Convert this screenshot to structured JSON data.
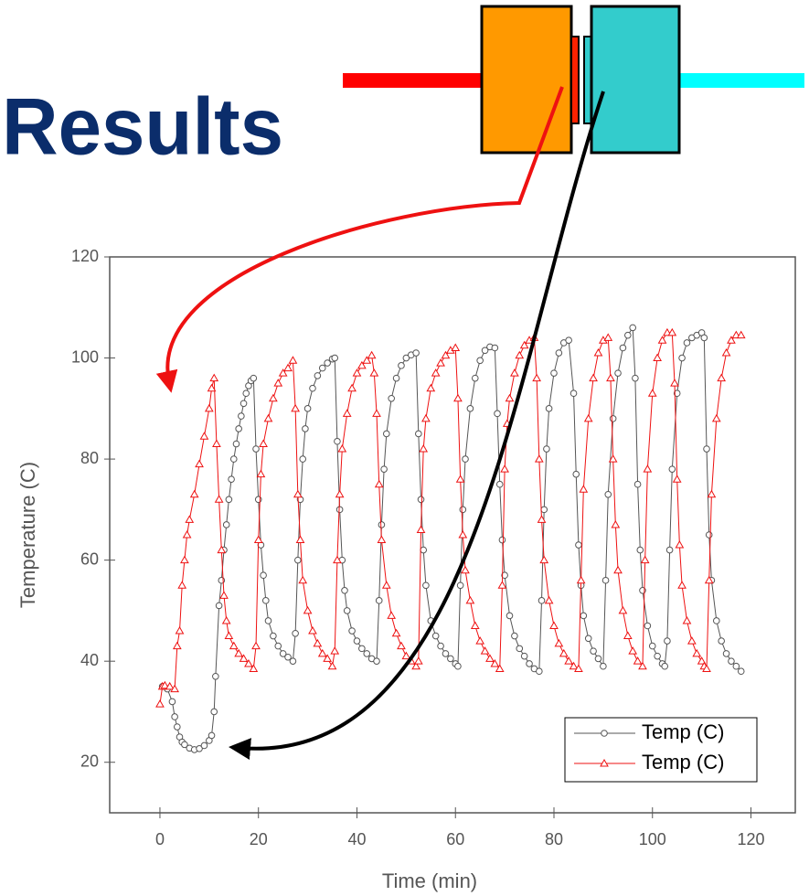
{
  "title": "Results",
  "chart_data": {
    "type": "line",
    "x_label": "Time (min)",
    "y_label": "Temperature (C)",
    "xlim": [
      -10.2,
      129
    ],
    "ylim": [
      10,
      120
    ],
    "xticks": [
      0,
      20,
      40,
      60,
      80,
      100,
      120
    ],
    "yticks": [
      20,
      40,
      60,
      80,
      100,
      120
    ],
    "legend": "lower right",
    "series": [
      {
        "name": "Temp (C)",
        "color": "#555555",
        "marker": "circle",
        "x": [
          0.5,
          1.5,
          2.5,
          3,
          3.5,
          4,
          4.5,
          5,
          6,
          7,
          8,
          9,
          10,
          10.5,
          11,
          11.3,
          12,
          12.5,
          13,
          13.5,
          14,
          14.5,
          15,
          15.5,
          16,
          16.5,
          17,
          17.5,
          18,
          18.5,
          19,
          19.5,
          20,
          20.5,
          21,
          21.5,
          22,
          23,
          24,
          25,
          26,
          27,
          27.5,
          28,
          28.5,
          29,
          29.5,
          30,
          31,
          32,
          33,
          34,
          35,
          35.5,
          36,
          36.5,
          37,
          37.5,
          38,
          39,
          40,
          41,
          42,
          43,
          44,
          44.5,
          45,
          45.5,
          46,
          47,
          48,
          49,
          50,
          51,
          52,
          52.5,
          53,
          53.5,
          54,
          55,
          56,
          57,
          58,
          59,
          60,
          60.5,
          61,
          61.5,
          62,
          63,
          64,
          65,
          66,
          67,
          68,
          68.5,
          69,
          69.5,
          70,
          71,
          72,
          73,
          74,
          75,
          76,
          77,
          77.5,
          78,
          78.5,
          79,
          80,
          81,
          82,
          83,
          84,
          84.5,
          85,
          85.5,
          86,
          87,
          88,
          89,
          90,
          90.5,
          91,
          92,
          93,
          94,
          95,
          96,
          96.5,
          97,
          97.5,
          98,
          99,
          100,
          101,
          102,
          102.5,
          103,
          103.5,
          104,
          105,
          106,
          107,
          108,
          109,
          110,
          110.5,
          111,
          111.5,
          112,
          113,
          114,
          115,
          116,
          117,
          118
        ],
        "values": [
          35,
          34.5,
          32,
          29,
          27,
          25,
          24,
          23.5,
          22.8,
          22.5,
          22.7,
          23.3,
          24.3,
          25.3,
          30,
          37,
          51,
          56,
          62,
          67,
          72,
          76,
          80,
          83,
          86,
          88.5,
          91,
          93,
          94.5,
          95.5,
          96,
          82,
          72,
          63,
          57,
          52,
          48,
          45,
          43,
          41.5,
          40.8,
          40,
          45.5,
          60,
          72,
          80,
          86,
          90,
          94,
          96.5,
          98,
          99,
          99.8,
          100,
          83.5,
          70,
          60,
          54,
          50,
          46,
          44,
          42.5,
          41.5,
          40.5,
          40,
          52,
          67,
          78,
          85,
          92,
          96,
          98.5,
          100,
          100.6,
          101,
          85,
          72,
          62,
          55,
          48,
          45,
          43,
          41.5,
          40.5,
          39.5,
          39,
          55,
          70,
          80,
          90,
          96,
          99.5,
          101.5,
          102.2,
          102,
          89,
          75,
          64,
          57,
          49,
          45,
          42.5,
          41,
          39.5,
          38.5,
          38,
          52,
          70,
          82,
          90,
          97,
          101,
          103,
          103.5,
          93,
          77,
          63,
          55,
          49,
          44.5,
          42,
          40.5,
          39,
          56,
          73,
          88,
          97,
          102,
          104.5,
          106,
          96,
          75,
          62,
          54,
          47,
          43,
          41,
          39.5,
          39,
          44,
          62,
          78,
          93,
          100,
          103,
          104,
          104.5,
          105,
          104,
          82,
          65,
          56,
          48,
          44,
          41.5,
          40,
          39,
          38
        ]
      },
      {
        "name": "Temp (C)",
        "color": "#ee1111",
        "marker": "triangle",
        "x": [
          0,
          0.5,
          1,
          2,
          3,
          3.5,
          4,
          4.5,
          5,
          5.5,
          6,
          7,
          8,
          9,
          10,
          10.5,
          11,
          11.5,
          12,
          12.5,
          13,
          13.5,
          14,
          15,
          16,
          17,
          18,
          19,
          19.5,
          20,
          20.5,
          21,
          22,
          23,
          24,
          25,
          26,
          27,
          27.5,
          28,
          28.5,
          29,
          30,
          31,
          32,
          33,
          34,
          35,
          35.5,
          36,
          36.5,
          37,
          38,
          39,
          40,
          41,
          42,
          43,
          43.5,
          44,
          44.5,
          45,
          46,
          47,
          48,
          49,
          50,
          51,
          52,
          52.5,
          53,
          53.5,
          54,
          55,
          56,
          57,
          58,
          59,
          60,
          60.5,
          61,
          61.5,
          62,
          63,
          64,
          65,
          66,
          67,
          68,
          69,
          69.5,
          70,
          70.5,
          71,
          72,
          73,
          74,
          75,
          76,
          76.5,
          77,
          77.5,
          78,
          79,
          80,
          81,
          82,
          83,
          84,
          85,
          85.5,
          86,
          87,
          88,
          89,
          90,
          91,
          91.5,
          92,
          92.5,
          93,
          94,
          95,
          96,
          97,
          98,
          98.5,
          99,
          100,
          101,
          102,
          103,
          104,
          104.5,
          105,
          105.5,
          106,
          107,
          108,
          109,
          110,
          110.5,
          111,
          111.5,
          112,
          113,
          114,
          115,
          116,
          117,
          118
        ],
        "values": [
          31.5,
          35,
          35.2,
          35,
          34.5,
          43,
          46,
          55,
          60,
          65,
          68,
          73,
          79,
          84.5,
          90,
          94,
          96,
          83,
          72,
          62,
          53,
          48,
          45,
          43,
          41.5,
          40.5,
          39.5,
          38.5,
          43,
          64,
          77,
          83,
          88,
          92,
          95,
          97,
          98,
          99.5,
          90,
          73,
          64,
          56,
          50,
          46,
          43.5,
          41.5,
          40.5,
          39,
          42,
          60,
          73,
          82,
          89,
          94,
          97,
          98.5,
          99.5,
          100.5,
          97,
          89,
          75,
          64,
          55,
          49,
          45.5,
          43,
          41,
          40,
          39,
          40,
          66,
          82,
          88,
          94,
          97,
          99,
          100.5,
          101.5,
          102,
          92,
          76,
          65,
          58,
          52,
          47,
          44,
          42,
          40.5,
          39.5,
          38.5,
          55,
          78,
          87,
          92,
          97,
          100.5,
          102.5,
          103.5,
          104,
          96,
          80,
          68,
          60,
          52,
          47,
          43.5,
          41.5,
          40,
          39,
          38.5,
          56,
          74,
          88,
          96,
          101,
          103.5,
          104,
          96,
          80,
          67,
          58,
          50,
          45,
          42,
          40,
          39,
          60,
          78,
          93,
          100,
          103.5,
          105,
          105,
          95,
          76,
          63,
          55,
          48,
          44,
          41.5,
          40,
          39,
          38.5,
          56,
          73,
          88,
          96,
          101,
          103.5,
          104.5,
          104.5
        ]
      }
    ]
  }
}
